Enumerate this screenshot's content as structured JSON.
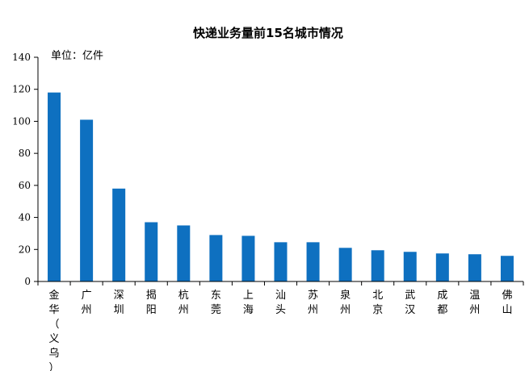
{
  "chart_data": {
    "type": "bar",
    "title": "快递业务量前15名城市情况",
    "unit_label": "单位：亿件",
    "xlabel": "",
    "ylabel": "",
    "ylim": [
      0,
      140
    ],
    "yticks": [
      0,
      20,
      40,
      60,
      80,
      100,
      120,
      140
    ],
    "grid": false,
    "legend": "none",
    "bar_color": "#0e70c0",
    "categories": [
      "金华（义乌）",
      "广州",
      "深圳",
      "揭阳",
      "杭州",
      "东莞",
      "上海",
      "汕头",
      "苏州",
      "泉州",
      "北京",
      "武汉",
      "成都",
      "温州",
      "佛山"
    ],
    "values": [
      118,
      101,
      58,
      37,
      35,
      29,
      28.5,
      24.5,
      24.5,
      21,
      19.5,
      18.5,
      17.5,
      17,
      16
    ]
  }
}
